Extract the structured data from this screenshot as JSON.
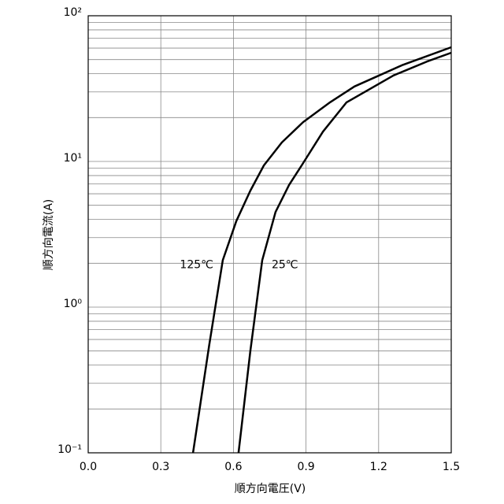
{
  "chart_data": {
    "type": "line",
    "x_label": "順方向電圧(V)",
    "y_label": "順方向電流(A)",
    "xlim": [
      0,
      1.5
    ],
    "xticks": [
      {
        "value": 0,
        "label": "0.0"
      },
      0.3,
      0.6,
      0.9,
      1.2,
      1.5
    ],
    "ylim": [
      0.1,
      100
    ],
    "yticks": [
      {
        "value": 0.1,
        "label": "10⁻¹"
      },
      {
        "value": 1,
        "label": "10⁰"
      },
      {
        "value": 10,
        "label": "10¹"
      },
      {
        "value": 100,
        "label": "10²"
      }
    ],
    "y_minor_ticks": [
      0.2,
      0.3,
      0.4,
      0.5,
      0.6,
      0.7,
      0.8,
      0.9,
      2,
      3,
      4,
      5,
      6,
      7,
      8,
      9,
      20,
      30,
      40,
      50,
      60,
      70,
      80,
      90
    ],
    "log_y": true,
    "grid": true,
    "series": [
      {
        "name": "125℃",
        "color": "#000000",
        "x": [
          0.433,
          0.5,
          0.556,
          0.612,
          0.67,
          0.726,
          0.8,
          0.888,
          1.0,
          1.1,
          1.3,
          1.5
        ],
        "values": [
          0.1,
          0.55,
          2.1,
          3.9,
          6.3,
          9.4,
          13.5,
          18.6,
          25.5,
          32.7,
          46,
          60.8
        ]
      },
      {
        "name": "25℃",
        "color": "#000000",
        "x": [
          0.621,
          0.67,
          0.719,
          0.774,
          0.83,
          0.882,
          0.97,
          1.067,
          1.262,
          1.4,
          1.5
        ],
        "values": [
          0.1,
          0.5,
          2.1,
          4.5,
          6.9,
          9.4,
          16,
          25.4,
          39,
          48.5,
          55.7
        ]
      }
    ]
  }
}
